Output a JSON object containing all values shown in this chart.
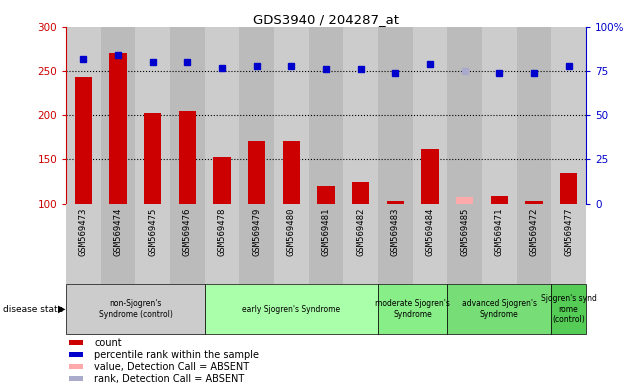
{
  "title": "GDS3940 / 204287_at",
  "samples": [
    "GSM569473",
    "GSM569474",
    "GSM569475",
    "GSM569476",
    "GSM569478",
    "GSM569479",
    "GSM569480",
    "GSM569481",
    "GSM569482",
    "GSM569483",
    "GSM569484",
    "GSM569485",
    "GSM569471",
    "GSM569472",
    "GSM569477"
  ],
  "count_values": [
    243,
    270,
    202,
    205,
    153,
    171,
    171,
    120,
    124,
    103,
    162,
    107,
    108,
    103,
    134
  ],
  "rank_values": [
    82,
    84,
    80,
    80,
    77,
    78,
    78,
    76,
    76,
    74,
    79,
    75,
    74,
    74,
    78
  ],
  "absent_mask": [
    false,
    false,
    false,
    false,
    false,
    false,
    false,
    false,
    false,
    false,
    false,
    true,
    false,
    false,
    false
  ],
  "absent_rank_mask": [
    false,
    false,
    false,
    false,
    false,
    false,
    false,
    false,
    false,
    false,
    false,
    true,
    false,
    false,
    false
  ],
  "ylim_left": [
    100,
    300
  ],
  "ylim_right": [
    0,
    100
  ],
  "yticks_left": [
    100,
    150,
    200,
    250,
    300
  ],
  "yticks_right": [
    0,
    25,
    50,
    75,
    100
  ],
  "bar_color": "#cc0000",
  "bar_absent_color": "#ffaaaa",
  "rank_color": "#0000cc",
  "rank_absent_color": "#aaaacc",
  "col_bg_even": "#cccccc",
  "col_bg_odd": "#bbbbbb",
  "groups": [
    {
      "label": "non-Sjogren's\nSyndrome (control)",
      "start": 0,
      "end": 4,
      "color": "#cccccc"
    },
    {
      "label": "early Sjogren's Syndrome",
      "start": 4,
      "end": 9,
      "color": "#aaffaa"
    },
    {
      "label": "moderate Sjogren's\nSyndrome",
      "start": 9,
      "end": 11,
      "color": "#88ee88"
    },
    {
      "label": "advanced Sjogren's\nSyndrome",
      "start": 11,
      "end": 14,
      "color": "#77dd77"
    },
    {
      "label": "Sjogren's synd\nrome\n(control)",
      "start": 14,
      "end": 15,
      "color": "#55cc55"
    }
  ],
  "legend_items": [
    {
      "label": "count",
      "color": "#cc0000"
    },
    {
      "label": "percentile rank within the sample",
      "color": "#0000cc"
    },
    {
      "label": "value, Detection Call = ABSENT",
      "color": "#ffaaaa"
    },
    {
      "label": "rank, Detection Call = ABSENT",
      "color": "#aaaacc"
    }
  ]
}
